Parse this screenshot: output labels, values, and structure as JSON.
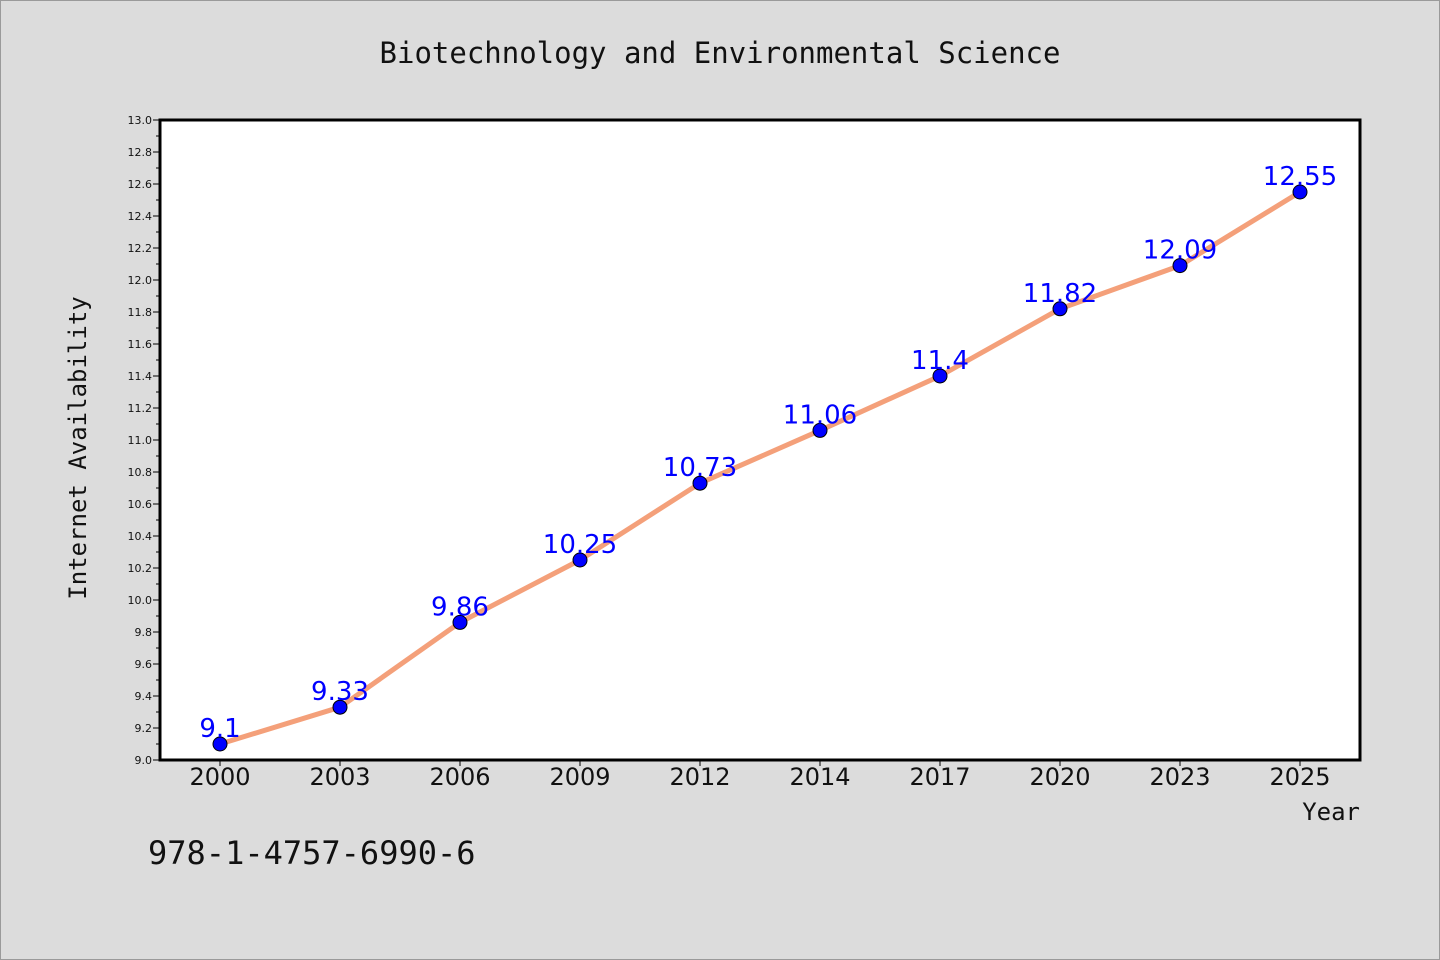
{
  "chart_data": {
    "type": "line",
    "title": "Biotechnology and Environmental Science",
    "xlabel": "Year",
    "ylabel": "Internet Availability",
    "categories": [
      "2000",
      "2003",
      "2006",
      "2009",
      "2012",
      "2014",
      "2017",
      "2020",
      "2023",
      "2025"
    ],
    "series": [
      {
        "values": [
          9.1,
          9.33,
          9.86,
          10.25,
          10.73,
          11.06,
          11.4,
          11.82,
          12.09,
          12.55
        ],
        "labels": [
          "9.1",
          "9.33",
          "9.86",
          "10.25",
          "10.73",
          "11.06",
          "11.4",
          "11.82",
          "12.09",
          "12.55"
        ]
      }
    ],
    "ylim": [
      9.0,
      13.0
    ],
    "yticks": [
      "9.0",
      "9.2",
      "9.4",
      "9.6",
      "9.8",
      "10.0",
      "10.2",
      "10.4",
      "10.6",
      "10.8",
      "11.0",
      "11.2",
      "11.4",
      "11.6",
      "11.8",
      "12.0",
      "12.2",
      "12.4",
      "12.6",
      "12.8",
      "13.0"
    ],
    "grid": false,
    "colors": {
      "line": "#f4a07a",
      "marker": "#0000ff",
      "data_label": "#0000ff",
      "background": "#dcdcdc",
      "plot_background": "#ffffff"
    }
  },
  "footer": {
    "isbn": "978-1-4757-6990-6"
  }
}
